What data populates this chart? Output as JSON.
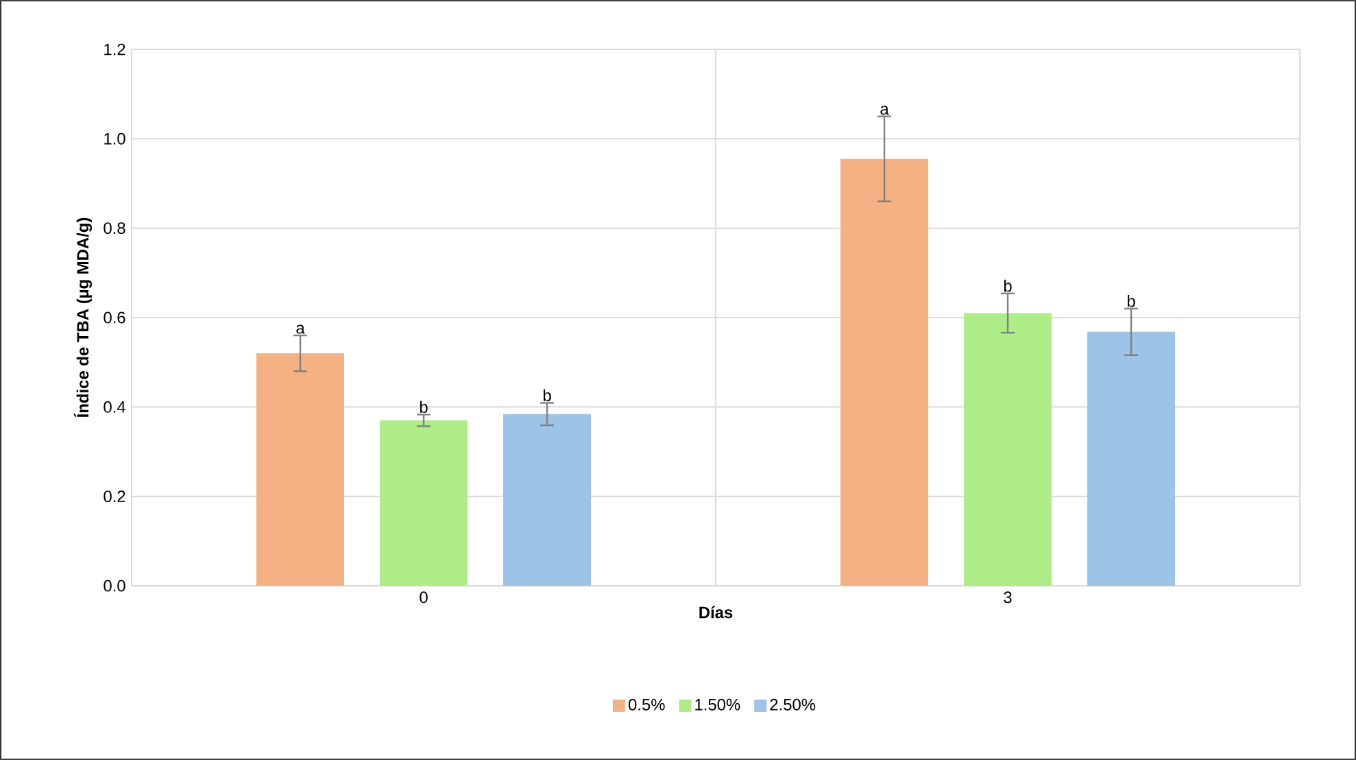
{
  "chart_data": {
    "type": "bar",
    "xlabel": "Días",
    "ylabel": "Índice de TBA (µg MDA/g)",
    "categories": [
      "0",
      "3"
    ],
    "series": [
      {
        "name": "0.5%",
        "color": "#f4b183",
        "values": [
          0.52,
          0.955
        ],
        "errors": [
          0.04,
          0.095
        ],
        "value_labels": [
          "a",
          "a"
        ]
      },
      {
        "name": "1.50%",
        "color": "#aeec88",
        "values": [
          0.37,
          0.61
        ],
        "errors": [
          0.013,
          0.044
        ],
        "value_labels": [
          "b",
          "b"
        ]
      },
      {
        "name": "2.50%",
        "color": "#9dc3e6",
        "values": [
          0.384,
          0.568
        ],
        "errors": [
          0.025,
          0.052
        ],
        "value_labels": [
          "b",
          "b"
        ]
      }
    ],
    "ylim": [
      0,
      1.2
    ],
    "yticks": [
      {
        "value": 0,
        "label": "0.0"
      },
      {
        "value": 0.2,
        "label": "0.2"
      },
      {
        "value": 0.4,
        "label": "0.4"
      },
      {
        "value": 0.6,
        "label": "0.6"
      },
      {
        "value": 0.8,
        "label": "0.8"
      },
      {
        "value": 1.0,
        "label": "1.0"
      },
      {
        "value": 1.2,
        "label": "1.2"
      }
    ],
    "grid": true,
    "legend": "bottom"
  }
}
